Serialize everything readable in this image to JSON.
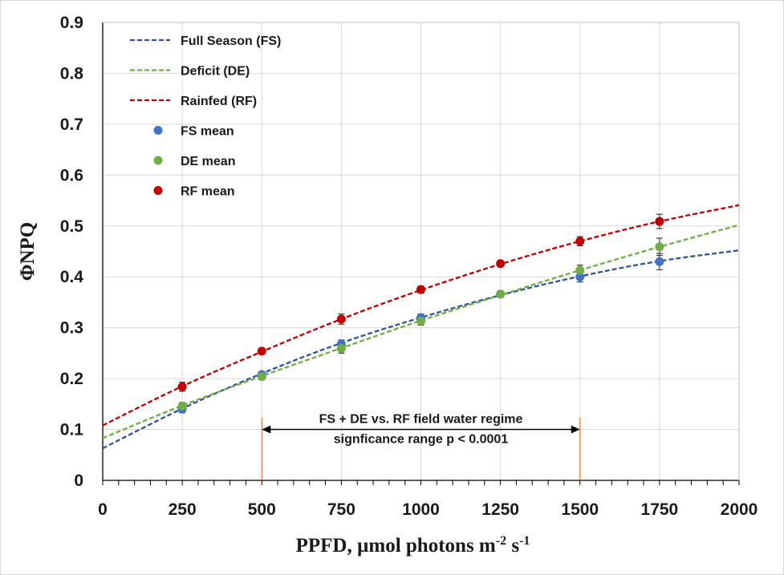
{
  "chart_data": {
    "type": "scatter",
    "xlabel": "PPFD, µmol photons m",
    "xlabel_sup1": "-2",
    "xlabel_mid": " s",
    "xlabel_sup2": "-1",
    "ylabel": "ΦNPQ",
    "xlim": [
      0,
      2000
    ],
    "ylim": [
      0,
      0.9
    ],
    "x_ticks": [
      0,
      250,
      500,
      750,
      1000,
      1250,
      1500,
      1750,
      2000
    ],
    "y_ticks": [
      0,
      0.1,
      0.2,
      0.3,
      0.4,
      0.5,
      0.6,
      0.7,
      0.8,
      0.9
    ],
    "x_tick_labels": [
      "0",
      "250",
      "500",
      "750",
      "1000",
      "1250",
      "1500",
      "1750",
      "2000"
    ],
    "y_tick_labels": [
      "0",
      "0.1",
      "0.2",
      "0.3",
      "0.4",
      "0.5",
      "0.6",
      "0.7",
      "0.8",
      "0.9"
    ],
    "grid": true,
    "legend_position": "top-left",
    "fit_x": [
      0,
      250,
      500,
      750,
      1000,
      1250,
      1500,
      1750,
      2000
    ],
    "fits": [
      {
        "name": "Full Season (FS)",
        "color": "#2f5597",
        "values": [
          0.063,
          0.141,
          0.21,
          0.27,
          0.32,
          0.364,
          0.401,
          0.431,
          0.452
        ]
      },
      {
        "name": "Deficit (DE)",
        "color": "#70ad47",
        "values": [
          0.083,
          0.147,
          0.205,
          0.26,
          0.314,
          0.364,
          0.413,
          0.459,
          0.502
        ]
      },
      {
        "name": "Rainfed (RF)",
        "color": "#c00000",
        "values": [
          0.108,
          0.185,
          0.253,
          0.317,
          0.374,
          0.425,
          0.47,
          0.509,
          0.541
        ]
      }
    ],
    "series": [
      {
        "name": "FS mean",
        "color": "#4472c4",
        "x": [
          250,
          500,
          750,
          1000,
          1250,
          1500,
          1750
        ],
        "values": [
          0.14,
          0.208,
          0.268,
          0.32,
          0.366,
          0.4,
          0.43
        ],
        "err": [
          0.007,
          0.006,
          0.008,
          0.007,
          0.006,
          0.01,
          0.016
        ]
      },
      {
        "name": "DE mean",
        "color": "#70ad47",
        "x": [
          250,
          500,
          750,
          1000,
          1250,
          1500,
          1750
        ],
        "values": [
          0.146,
          0.204,
          0.259,
          0.313,
          0.366,
          0.413,
          0.459
        ],
        "err": [
          0.007,
          0.006,
          0.009,
          0.008,
          0.006,
          0.01,
          0.017
        ]
      },
      {
        "name": "RF mean",
        "color": "#c00000",
        "x": [
          250,
          500,
          750,
          1000,
          1250,
          1500,
          1750
        ],
        "values": [
          0.184,
          0.254,
          0.317,
          0.375,
          0.426,
          0.47,
          0.509
        ],
        "err": [
          0.009,
          0.006,
          0.01,
          0.007,
          0.005,
          0.009,
          0.014
        ]
      }
    ],
    "vlines": [
      {
        "x": 500,
        "color": "#ed7d31"
      },
      {
        "x": 1500,
        "color": "#ed7d31"
      }
    ],
    "annotation": {
      "line1": "FS + DE vs. RF field water regime",
      "line2": "signficance range p < 0.0001",
      "x_from": 500,
      "x_to": 1500,
      "y": 0.1
    }
  }
}
